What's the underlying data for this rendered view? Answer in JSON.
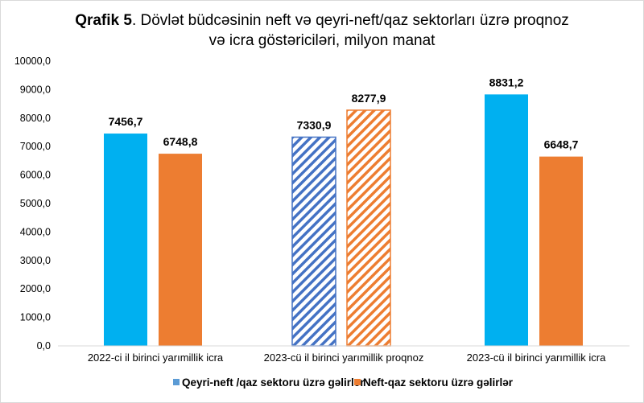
{
  "chart_data": {
    "type": "bar",
    "title_bold": "Qrafik 5",
    "title_line1": ". Dövlət büdcəsinin neft və qeyri-neft/qaz sektorları üzrə proqnoz",
    "title_line2": "və icra göstəriciləri, milyon manat",
    "categories": [
      "2022-ci il birinci yarımillik icra",
      "2023-cü il birinci yarımillik proqnoz",
      "2023-cü il birinci yarımillik icra"
    ],
    "series": [
      {
        "name": "Qeyri-neft /qaz sektoru üzrə gəlirlər",
        "values": [
          7456.7,
          7330.9,
          8831.2
        ],
        "labels": [
          "7456,7",
          "7330,9",
          "8831,2"
        ],
        "color": "#00B0F0",
        "hatch_color": "#4472C4",
        "legend_color": "#5B9BD5"
      },
      {
        "name": "Neft-qaz sektoru üzrə gəlirlər",
        "values": [
          6748.8,
          8277.9,
          6648.7
        ],
        "labels": [
          "6748,8",
          "8277,9",
          "6648,7"
        ],
        "color": "#ED7D31",
        "hatch_color": "#ED7D31",
        "legend_color": "#ED7D31"
      }
    ],
    "hatched_category": "2023-cü il birinci yarımillik proqnoz",
    "ylim": [
      0,
      10000
    ],
    "yticks": [
      "0,0",
      "1000,0",
      "2000,0",
      "3000,0",
      "4000,0",
      "5000,0",
      "6000,0",
      "7000,0",
      "8000,0",
      "9000,0",
      "10000,0"
    ],
    "grid": false,
    "legend": "bottom"
  }
}
